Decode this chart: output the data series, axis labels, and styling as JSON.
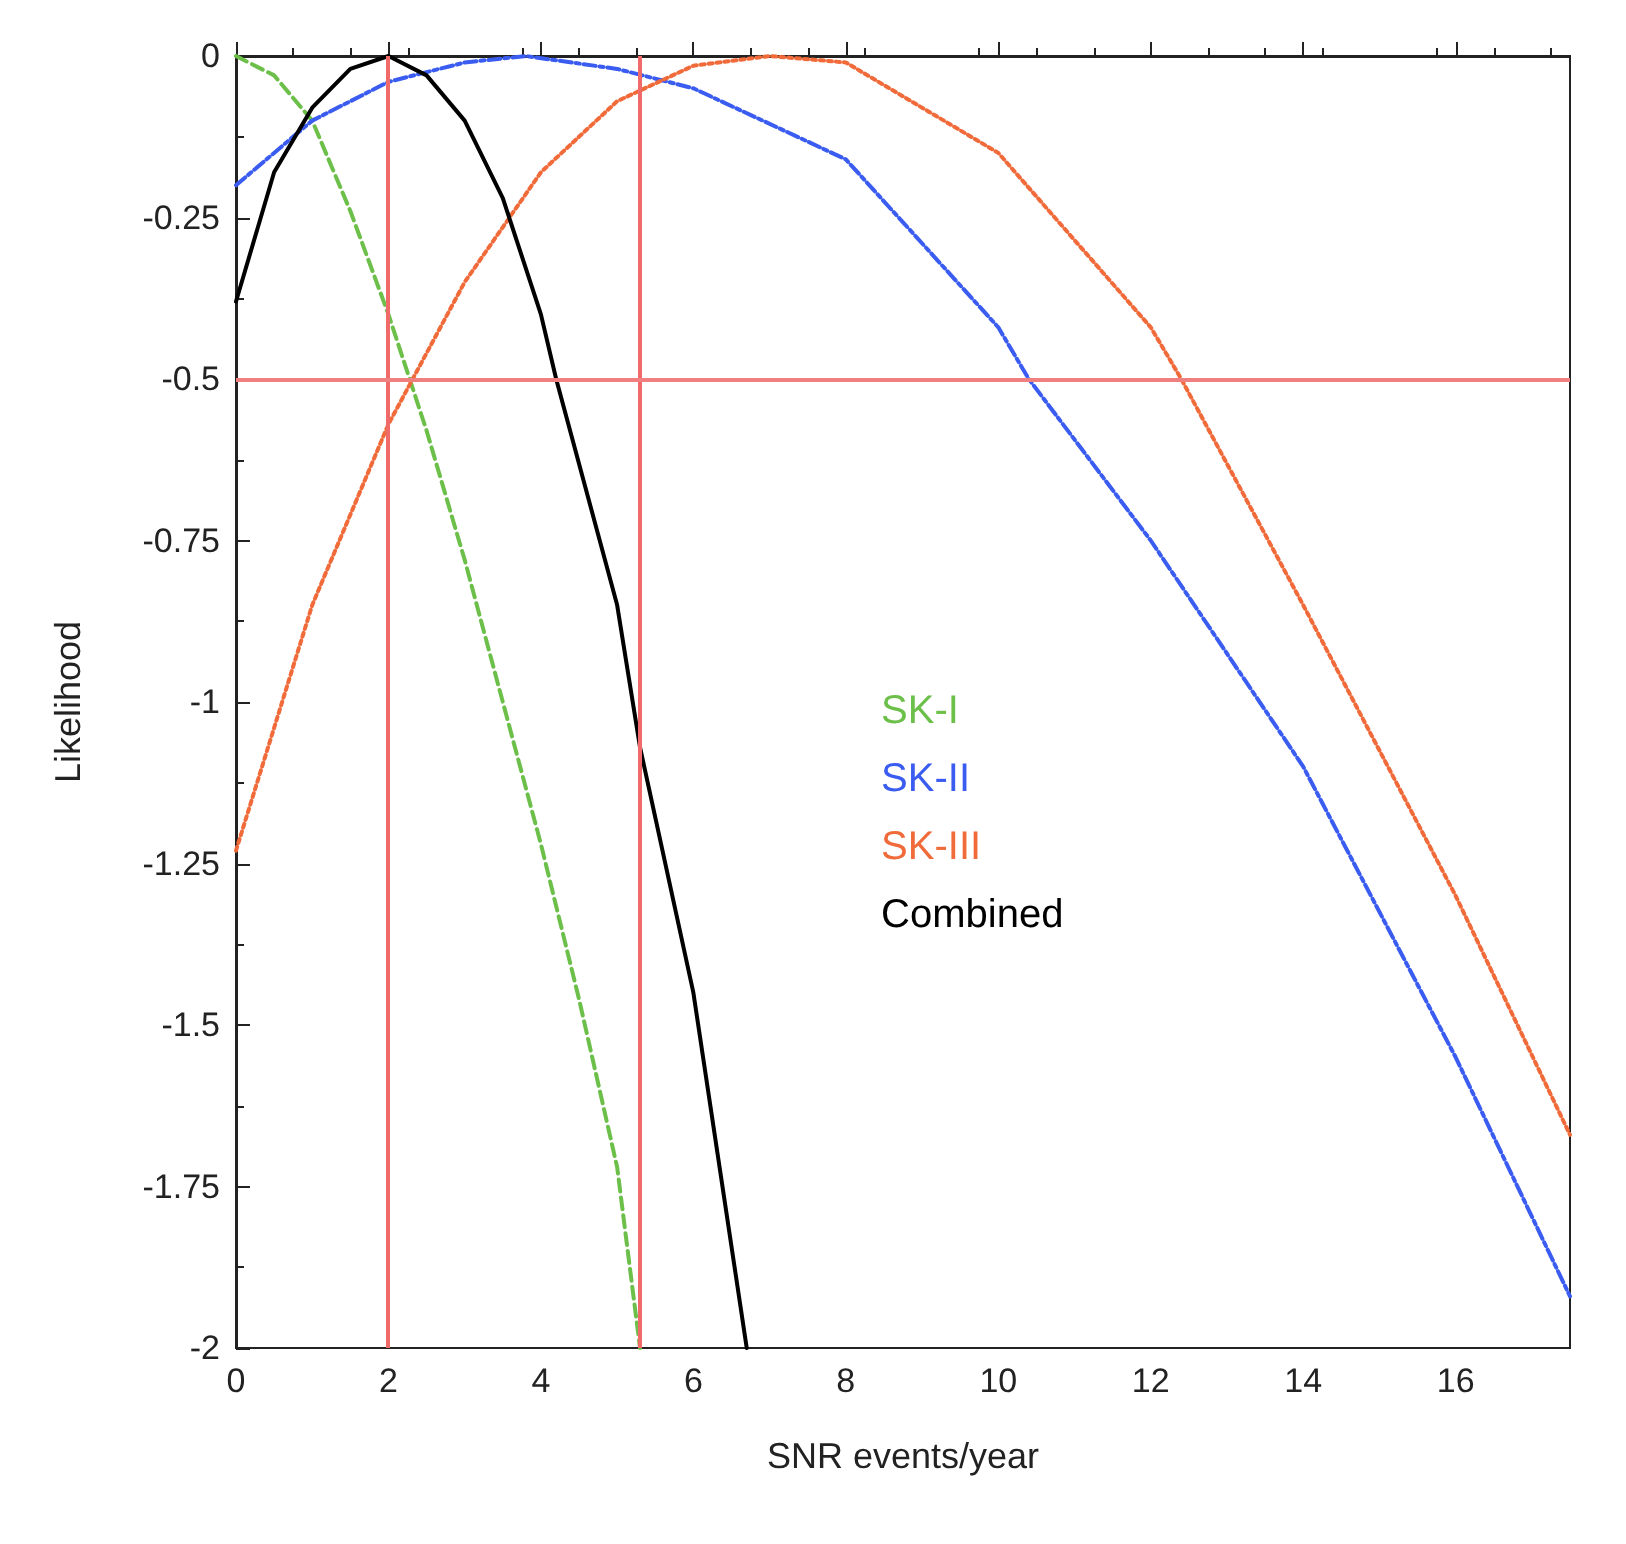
{
  "chart_data": {
    "type": "line",
    "xlabel": "SNR events/year",
    "ylabel": "Likelihood",
    "xlim": [
      0,
      17.5
    ],
    "xticks": [
      0,
      2,
      4,
      6,
      8,
      10,
      12,
      14,
      16
    ],
    "ylim": [
      -2,
      0
    ],
    "yticks": [
      0,
      -0.25,
      -0.5,
      -0.75,
      -1,
      -1.25,
      -1.5,
      -1.75,
      -2
    ],
    "grid": false,
    "legend": "center",
    "marker": "none",
    "series": [
      {
        "name": "SK-I",
        "color": "#6cc04a",
        "line_style": "dashed",
        "x": [
          0,
          0.5,
          1,
          1.5,
          2,
          2.5,
          3,
          3.5,
          4,
          4.5,
          5,
          5.3
        ],
        "values": [
          0,
          -0.03,
          -0.1,
          -0.24,
          -0.4,
          -0.58,
          -0.78,
          -1,
          -1.22,
          -1.46,
          -1.72,
          -2
        ]
      },
      {
        "name": "SK-II",
        "color": "#3a5cf0",
        "line_style": "dashdot",
        "x": [
          0,
          1,
          2,
          3,
          3.8,
          5,
          6,
          8,
          10,
          10.4,
          12,
          14,
          16,
          17.5
        ],
        "values": [
          -0.2,
          -0.1,
          -0.04,
          -0.01,
          0,
          -0.02,
          -0.05,
          -0.16,
          -0.42,
          -0.5,
          -0.75,
          -1.1,
          -1.55,
          -1.92
        ]
      },
      {
        "name": "SK-III",
        "color": "#f06a3a",
        "line_style": "dotted",
        "x": [
          0,
          1,
          2,
          3,
          4,
          5,
          6,
          7,
          8,
          10,
          12,
          12.4,
          14,
          16,
          17.5
        ],
        "values": [
          -1.23,
          -0.85,
          -0.57,
          -0.35,
          -0.18,
          -0.07,
          -0.015,
          0,
          -0.01,
          -0.15,
          -0.42,
          -0.5,
          -0.85,
          -1.3,
          -1.67
        ]
      },
      {
        "name": "Combined",
        "color": "#000000",
        "line_style": "solid",
        "x": [
          0,
          0.5,
          1,
          1.5,
          2,
          2.5,
          3,
          3.5,
          4,
          4.2,
          5,
          5.3,
          6,
          6.7
        ],
        "values": [
          -0.38,
          -0.18,
          -0.08,
          -0.02,
          0,
          -0.03,
          -0.1,
          -0.22,
          -0.4,
          -0.5,
          -0.85,
          -1.07,
          -1.45,
          -2
        ]
      }
    ],
    "ref_lines": [
      {
        "axis": "x",
        "value": 2,
        "color": "#f06a6a"
      },
      {
        "axis": "x",
        "value": 5.3,
        "color": "#f06a6a"
      },
      {
        "axis": "y",
        "value": -0.5,
        "color": "#f08080"
      }
    ]
  }
}
